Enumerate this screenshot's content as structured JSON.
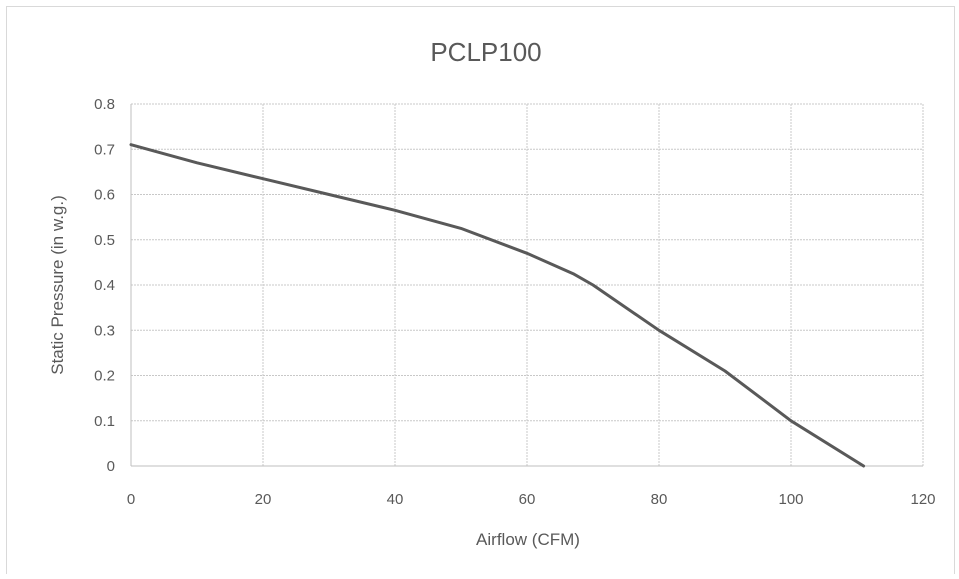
{
  "chart_data": {
    "type": "line",
    "title": "PCLP100",
    "xlabel": "Airflow (CFM)",
    "ylabel": "Static Pressure (in w.g.)",
    "xlim": [
      0,
      120
    ],
    "ylim": [
      0,
      0.8
    ],
    "xticks": [
      0,
      20,
      40,
      60,
      80,
      100,
      120
    ],
    "yticks": [
      0,
      0.1,
      0.2,
      0.3,
      0.4,
      0.5,
      0.6,
      0.7,
      0.8
    ],
    "grid": true,
    "legend": "none",
    "series": [
      {
        "color": "#595959",
        "x": [
          0,
          10,
          20,
          30,
          40,
          50,
          60,
          67,
          70,
          80,
          90,
          100,
          111
        ],
        "y": [
          0.71,
          0.67,
          0.635,
          0.6,
          0.565,
          0.525,
          0.47,
          0.425,
          0.4,
          0.3,
          0.21,
          0.1,
          0.0
        ]
      }
    ]
  }
}
